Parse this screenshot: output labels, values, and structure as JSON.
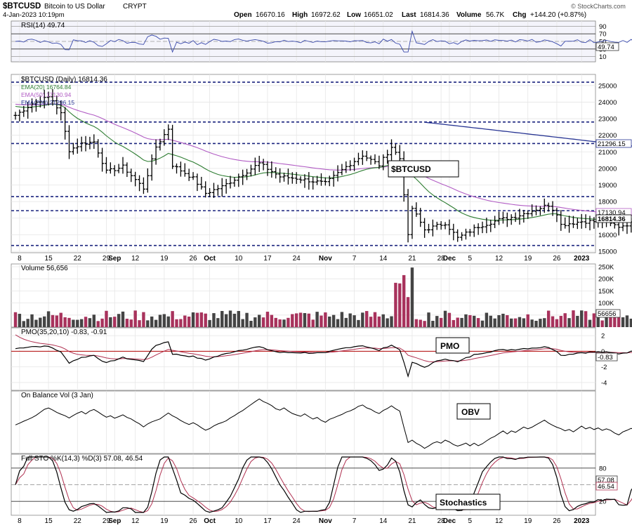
{
  "header": {
    "symbol": "$BTCUSD",
    "name": "Bitcoin to US Dollar",
    "exchange": "CRYPT",
    "datetime": "4-Jan-2023 10:19pm",
    "open_label": "Open",
    "open": "16670.16",
    "high_label": "High",
    "high": "16972.62",
    "low_label": "Low",
    "low": "16651.02",
    "last_label": "Last",
    "last": "16814.36",
    "volume_label": "Volume",
    "volume": "56.7K",
    "chg_label": "Chg",
    "chg": "+144.20 (+0.87%)",
    "credit": "© StockCharts.com"
  },
  "colors": {
    "bg": "#ffffff",
    "grid": "#e6e6e6",
    "panel_bg": "#f4f4fb",
    "price": "#000000",
    "ema20": "#2e7d32",
    "ema50": "#b15cc4",
    "ema200": "#283593",
    "hline": "#1a237e",
    "vol_up": "#444444",
    "vol_down": "#a8325c",
    "pmo_signal": "#b03050",
    "zero_line": "#b00000"
  },
  "x_axis": {
    "labels": [
      {
        "i": 1,
        "t": "8"
      },
      {
        "i": 8,
        "t": "15"
      },
      {
        "i": 15,
        "t": "22"
      },
      {
        "i": 22,
        "t": "29"
      },
      {
        "i": 24,
        "t": "Sep",
        "bold": true
      },
      {
        "i": 29,
        "t": "12"
      },
      {
        "i": 36,
        "t": "19"
      },
      {
        "i": 43,
        "t": "26"
      },
      {
        "i": 47,
        "t": "Oct",
        "bold": true
      },
      {
        "i": 54,
        "t": "10"
      },
      {
        "i": 61,
        "t": "17"
      },
      {
        "i": 68,
        "t": "24"
      },
      {
        "i": 75,
        "t": "Nov",
        "bold": true
      },
      {
        "i": 82,
        "t": "7"
      },
      {
        "i": 89,
        "t": "14"
      },
      {
        "i": 96,
        "t": "21"
      },
      {
        "i": 103,
        "t": "28"
      },
      {
        "i": 105,
        "t": "Dec",
        "bold": true
      },
      {
        "i": 110,
        "t": "5"
      },
      {
        "i": 117,
        "t": "12"
      },
      {
        "i": 124,
        "t": "19"
      },
      {
        "i": 131,
        "t": "26"
      },
      {
        "i": 137,
        "t": "2023",
        "bold": true
      }
    ]
  },
  "panels": {
    "rsi": {
      "title": "RSI(14) 49.74",
      "levels": [
        "90",
        "70",
        "50",
        "30",
        "10"
      ],
      "last_label": "49.74"
    },
    "price": {
      "title": "$BTCUSD (Daily) 16814.36",
      "ema20_label": "EMA(20) 16764.84",
      "ema50_label": "EMA(50) 17130.94",
      "ema200_label": "EMA(200) 21296.15",
      "ticks": [
        "25000",
        "24000",
        "23000",
        "22000",
        "21000",
        "20000",
        "19000",
        "18000",
        "17000",
        "16000",
        "15000"
      ],
      "ema50_tag": "17130.94",
      "ema200_tag": "21296.15",
      "last_tag": "16814.36",
      "annotation": "$BTCUSD"
    },
    "volume": {
      "title": "Volume 56,656",
      "ticks": [
        "250K",
        "200K",
        "150K",
        "100K",
        "50K"
      ],
      "last_tag": "56656"
    },
    "pmo": {
      "title": "PMO(35,20,10) -0.83, -0.91",
      "ticks": [
        "2",
        "0",
        "-2",
        "-4"
      ],
      "last_tag": "-0.83",
      "annotation": "PMO"
    },
    "obv": {
      "title": "On Balance Vol (3 Jan)",
      "annotation": "OBV"
    },
    "sto": {
      "title": "Full STO %K(14,3) %D(3) 57.08, 46.54",
      "ticks": [
        "80",
        "50",
        "20"
      ],
      "k_tag": "57.08",
      "d_tag": "46.54",
      "annotation": "Stochastics"
    }
  },
  "chart_data": {
    "type": "line",
    "title": "$BTCUSD (Daily)",
    "x_axis_range": [
      "2022-08-06",
      "2023-01-04"
    ],
    "price_ylim": [
      15000,
      25500
    ],
    "close": [
      {
        "x": "2022-08-06",
        "y": 23200
      },
      {
        "x": "2022-08-10",
        "y": 23900
      },
      {
        "x": "2022-08-14",
        "y": 24300
      },
      {
        "x": "2022-08-15",
        "y": 24100
      },
      {
        "x": "2022-08-17",
        "y": 23300
      },
      {
        "x": "2022-08-19",
        "y": 21100
      },
      {
        "x": "2022-08-22",
        "y": 21500
      },
      {
        "x": "2022-08-25",
        "y": 21600
      },
      {
        "x": "2022-08-28",
        "y": 19800
      },
      {
        "x": "2022-09-01",
        "y": 20100
      },
      {
        "x": "2022-09-06",
        "y": 18800
      },
      {
        "x": "2022-09-09",
        "y": 21300
      },
      {
        "x": "2022-09-12",
        "y": 22400
      },
      {
        "x": "2022-09-13",
        "y": 20200
      },
      {
        "x": "2022-09-18",
        "y": 19400
      },
      {
        "x": "2022-09-21",
        "y": 18500
      },
      {
        "x": "2022-09-25",
        "y": 18900
      },
      {
        "x": "2022-09-29",
        "y": 19500
      },
      {
        "x": "2022-10-04",
        "y": 20300
      },
      {
        "x": "2022-10-09",
        "y": 19500
      },
      {
        "x": "2022-10-13",
        "y": 19400
      },
      {
        "x": "2022-10-20",
        "y": 19100
      },
      {
        "x": "2022-10-25",
        "y": 20100
      },
      {
        "x": "2022-10-29",
        "y": 20800
      },
      {
        "x": "2022-11-02",
        "y": 20200
      },
      {
        "x": "2022-11-05",
        "y": 21300
      },
      {
        "x": "2022-11-07",
        "y": 20600
      },
      {
        "x": "2022-11-08",
        "y": 18500
      },
      {
        "x": "2022-11-09",
        "y": 15900
      },
      {
        "x": "2022-11-10",
        "y": 17600
      },
      {
        "x": "2022-11-13",
        "y": 16300
      },
      {
        "x": "2022-11-18",
        "y": 16700
      },
      {
        "x": "2022-11-21",
        "y": 15800
      },
      {
        "x": "2022-11-26",
        "y": 16500
      },
      {
        "x": "2022-12-01",
        "y": 16900
      },
      {
        "x": "2022-12-05",
        "y": 17100
      },
      {
        "x": "2022-12-13",
        "y": 17800
      },
      {
        "x": "2022-12-15",
        "y": 17300
      },
      {
        "x": "2022-12-16",
        "y": 16600
      },
      {
        "x": "2022-12-21",
        "y": 16800
      },
      {
        "x": "2022-12-26",
        "y": 16800
      },
      {
        "x": "2022-12-30",
        "y": 16500
      },
      {
        "x": "2023-01-04",
        "y": 16814
      }
    ],
    "hlines": [
      25200,
      22800,
      21500,
      18300,
      17450,
      15350
    ],
    "rsi_ylim": [
      0,
      100
    ],
    "rsi_last": 49.74,
    "volume_ylim": [
      0,
      250000
    ],
    "volume_last": 56656,
    "pmo_ylim": [
      -5,
      3
    ],
    "pmo_last": -0.83,
    "pmo_signal_last": -0.91,
    "sto_ylim": [
      0,
      100
    ],
    "sto_k_last": 57.08,
    "sto_d_last": 46.54
  }
}
